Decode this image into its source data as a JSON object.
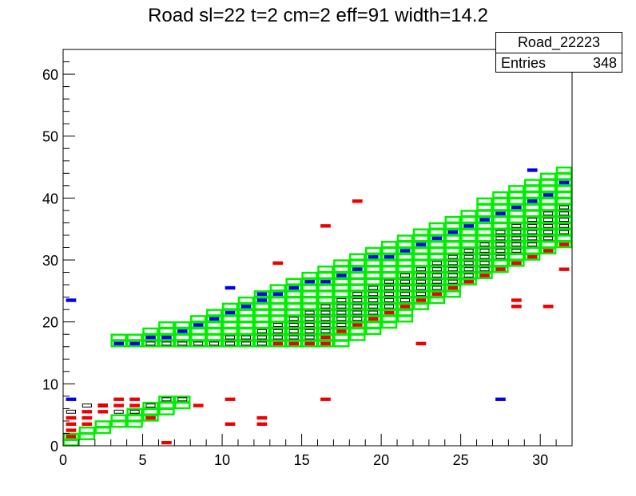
{
  "title": "Road sl=22 t=2 cm=2 eff=91 width=14.2",
  "stats": {
    "name": "Road_22223",
    "entries_label": "Entries",
    "entries_value": "348"
  },
  "colors": {
    "green": "#00ee00",
    "blue": "#0000ee",
    "red": "#ee0000",
    "black": "#000000"
  },
  "chart_data": {
    "type": "heatmap",
    "title": "Road sl=22 t=2 cm=2 eff=91 width=14.2",
    "xlim": [
      0,
      32
    ],
    "ylim": [
      0,
      64
    ],
    "x_ticks": [
      0,
      5,
      10,
      15,
      20,
      25,
      30
    ],
    "y_ticks": [
      0,
      10,
      20,
      30,
      40,
      50,
      60
    ],
    "road_outline": {
      "lower_band": [
        [
          0,
          0,
          1
        ],
        [
          1,
          1,
          2
        ],
        [
          2,
          2,
          3
        ],
        [
          3,
          3,
          4
        ],
        [
          4,
          3,
          5
        ],
        [
          5,
          4,
          6
        ],
        [
          6,
          5,
          7
        ],
        [
          7,
          6,
          7
        ]
      ],
      "upper_band": [
        [
          3,
          16,
          17
        ],
        [
          4,
          16,
          17
        ],
        [
          5,
          16,
          18
        ],
        [
          6,
          16,
          19
        ],
        [
          7,
          16,
          19
        ],
        [
          8,
          16,
          20
        ],
        [
          9,
          16,
          21
        ],
        [
          10,
          16,
          22
        ],
        [
          11,
          16,
          23
        ],
        [
          12,
          16,
          24
        ],
        [
          13,
          16,
          25
        ],
        [
          14,
          16,
          26
        ],
        [
          15,
          16,
          27
        ],
        [
          16,
          16,
          28
        ],
        [
          17,
          16,
          29
        ],
        [
          18,
          17,
          30
        ],
        [
          19,
          18,
          31
        ],
        [
          20,
          19,
          32
        ],
        [
          21,
          20,
          33
        ],
        [
          22,
          22,
          34
        ],
        [
          23,
          23,
          35
        ],
        [
          24,
          24,
          36
        ],
        [
          25,
          26,
          37
        ],
        [
          26,
          27,
          39
        ],
        [
          27,
          28,
          40
        ],
        [
          28,
          29,
          41
        ],
        [
          29,
          30,
          42
        ],
        [
          30,
          31,
          43
        ],
        [
          31,
          32,
          44
        ]
      ]
    },
    "blue_cells": [
      [
        0,
        7
      ],
      [
        3,
        16
      ],
      [
        4,
        16
      ],
      [
        5,
        17
      ],
      [
        6,
        17
      ],
      [
        7,
        18
      ],
      [
        8,
        19
      ],
      [
        9,
        20
      ],
      [
        10,
        21
      ],
      [
        11,
        22
      ],
      [
        12,
        23
      ],
      [
        13,
        24
      ],
      [
        14,
        25
      ],
      [
        15,
        26
      ],
      [
        16,
        26
      ],
      [
        17,
        27
      ],
      [
        18,
        28
      ],
      [
        19,
        30
      ],
      [
        20,
        30
      ],
      [
        21,
        31
      ],
      [
        22,
        32
      ],
      [
        23,
        33
      ],
      [
        24,
        34
      ],
      [
        25,
        35
      ],
      [
        26,
        36
      ],
      [
        27,
        37
      ],
      [
        28,
        38
      ],
      [
        29,
        39
      ],
      [
        30,
        40
      ],
      [
        31,
        42
      ],
      [
        10,
        25
      ],
      [
        12,
        24
      ],
      [
        29,
        44
      ],
      [
        27,
        7
      ],
      [
        0,
        23
      ]
    ],
    "red_cells": [
      [
        0,
        1
      ],
      [
        0,
        2
      ],
      [
        0,
        3
      ],
      [
        0,
        4
      ],
      [
        1,
        3
      ],
      [
        1,
        4
      ],
      [
        1,
        5
      ],
      [
        2,
        5
      ],
      [
        2,
        6
      ],
      [
        3,
        6
      ],
      [
        3,
        7
      ],
      [
        4,
        6
      ],
      [
        4,
        7
      ],
      [
        5,
        4
      ],
      [
        13,
        16
      ],
      [
        14,
        16
      ],
      [
        15,
        16
      ],
      [
        16,
        16
      ],
      [
        16,
        17
      ],
      [
        17,
        18
      ],
      [
        18,
        19
      ],
      [
        19,
        20
      ],
      [
        20,
        21
      ],
      [
        21,
        22
      ],
      [
        22,
        23
      ],
      [
        23,
        24
      ],
      [
        24,
        25
      ],
      [
        25,
        26
      ],
      [
        26,
        27
      ],
      [
        27,
        28
      ],
      [
        28,
        29
      ],
      [
        29,
        30
      ],
      [
        30,
        31
      ],
      [
        31,
        32
      ],
      [
        18,
        39
      ],
      [
        16,
        35
      ],
      [
        13,
        29
      ],
      [
        22,
        16
      ],
      [
        16,
        7
      ],
      [
        10,
        7
      ],
      [
        10,
        3
      ],
      [
        12,
        3
      ],
      [
        12,
        4
      ],
      [
        6,
        0
      ],
      [
        8,
        6
      ],
      [
        28,
        22
      ],
      [
        28,
        23
      ],
      [
        30,
        22
      ],
      [
        31,
        28
      ]
    ],
    "box_cells": [
      [
        0,
        5
      ],
      [
        1,
        6
      ],
      [
        2,
        6
      ],
      [
        3,
        5
      ],
      [
        4,
        5
      ],
      [
        5,
        6
      ],
      [
        6,
        7
      ],
      [
        7,
        7
      ],
      [
        5,
        16
      ],
      [
        6,
        16
      ],
      [
        7,
        16
      ],
      [
        8,
        16
      ],
      [
        9,
        16
      ],
      [
        10,
        16
      ],
      [
        10,
        17
      ],
      [
        11,
        16
      ],
      [
        11,
        17
      ],
      [
        12,
        16
      ],
      [
        12,
        17
      ],
      [
        12,
        18
      ],
      [
        13,
        17
      ],
      [
        13,
        18
      ],
      [
        13,
        19
      ],
      [
        14,
        17
      ],
      [
        14,
        18
      ],
      [
        14,
        19
      ],
      [
        14,
        20
      ],
      [
        15,
        17
      ],
      [
        15,
        18
      ],
      [
        15,
        19
      ],
      [
        15,
        20
      ],
      [
        15,
        21
      ],
      [
        16,
        18
      ],
      [
        16,
        19
      ],
      [
        16,
        20
      ],
      [
        16,
        21
      ],
      [
        16,
        22
      ],
      [
        17,
        19
      ],
      [
        17,
        20
      ],
      [
        17,
        21
      ],
      [
        17,
        22
      ],
      [
        17,
        23
      ],
      [
        18,
        20
      ],
      [
        18,
        21
      ],
      [
        18,
        22
      ],
      [
        18,
        23
      ],
      [
        18,
        24
      ],
      [
        19,
        21
      ],
      [
        19,
        22
      ],
      [
        19,
        23
      ],
      [
        19,
        24
      ],
      [
        19,
        25
      ],
      [
        20,
        22
      ],
      [
        20,
        23
      ],
      [
        20,
        24
      ],
      [
        20,
        25
      ],
      [
        20,
        26
      ],
      [
        21,
        23
      ],
      [
        21,
        24
      ],
      [
        21,
        25
      ],
      [
        21,
        26
      ],
      [
        21,
        27
      ],
      [
        22,
        24
      ],
      [
        22,
        25
      ],
      [
        22,
        26
      ],
      [
        22,
        27
      ],
      [
        22,
        28
      ],
      [
        23,
        25
      ],
      [
        23,
        26
      ],
      [
        23,
        27
      ],
      [
        23,
        28
      ],
      [
        23,
        29
      ],
      [
        24,
        26
      ],
      [
        24,
        27
      ],
      [
        24,
        28
      ],
      [
        24,
        29
      ],
      [
        24,
        30
      ],
      [
        25,
        27
      ],
      [
        25,
        28
      ],
      [
        25,
        29
      ],
      [
        25,
        30
      ],
      [
        25,
        31
      ],
      [
        26,
        28
      ],
      [
        26,
        29
      ],
      [
        26,
        30
      ],
      [
        26,
        31
      ],
      [
        26,
        32
      ],
      [
        27,
        30
      ],
      [
        27,
        31
      ],
      [
        27,
        32
      ],
      [
        27,
        33
      ],
      [
        27,
        34
      ],
      [
        28,
        31
      ],
      [
        28,
        32
      ],
      [
        28,
        33
      ],
      [
        28,
        34
      ],
      [
        28,
        35
      ],
      [
        29,
        32
      ],
      [
        29,
        33
      ],
      [
        29,
        34
      ],
      [
        29,
        35
      ],
      [
        29,
        36
      ],
      [
        30,
        33
      ],
      [
        30,
        34
      ],
      [
        30,
        35
      ],
      [
        30,
        36
      ],
      [
        30,
        37
      ],
      [
        31,
        34
      ],
      [
        31,
        35
      ],
      [
        31,
        36
      ],
      [
        31,
        37
      ],
      [
        31,
        38
      ]
    ]
  }
}
